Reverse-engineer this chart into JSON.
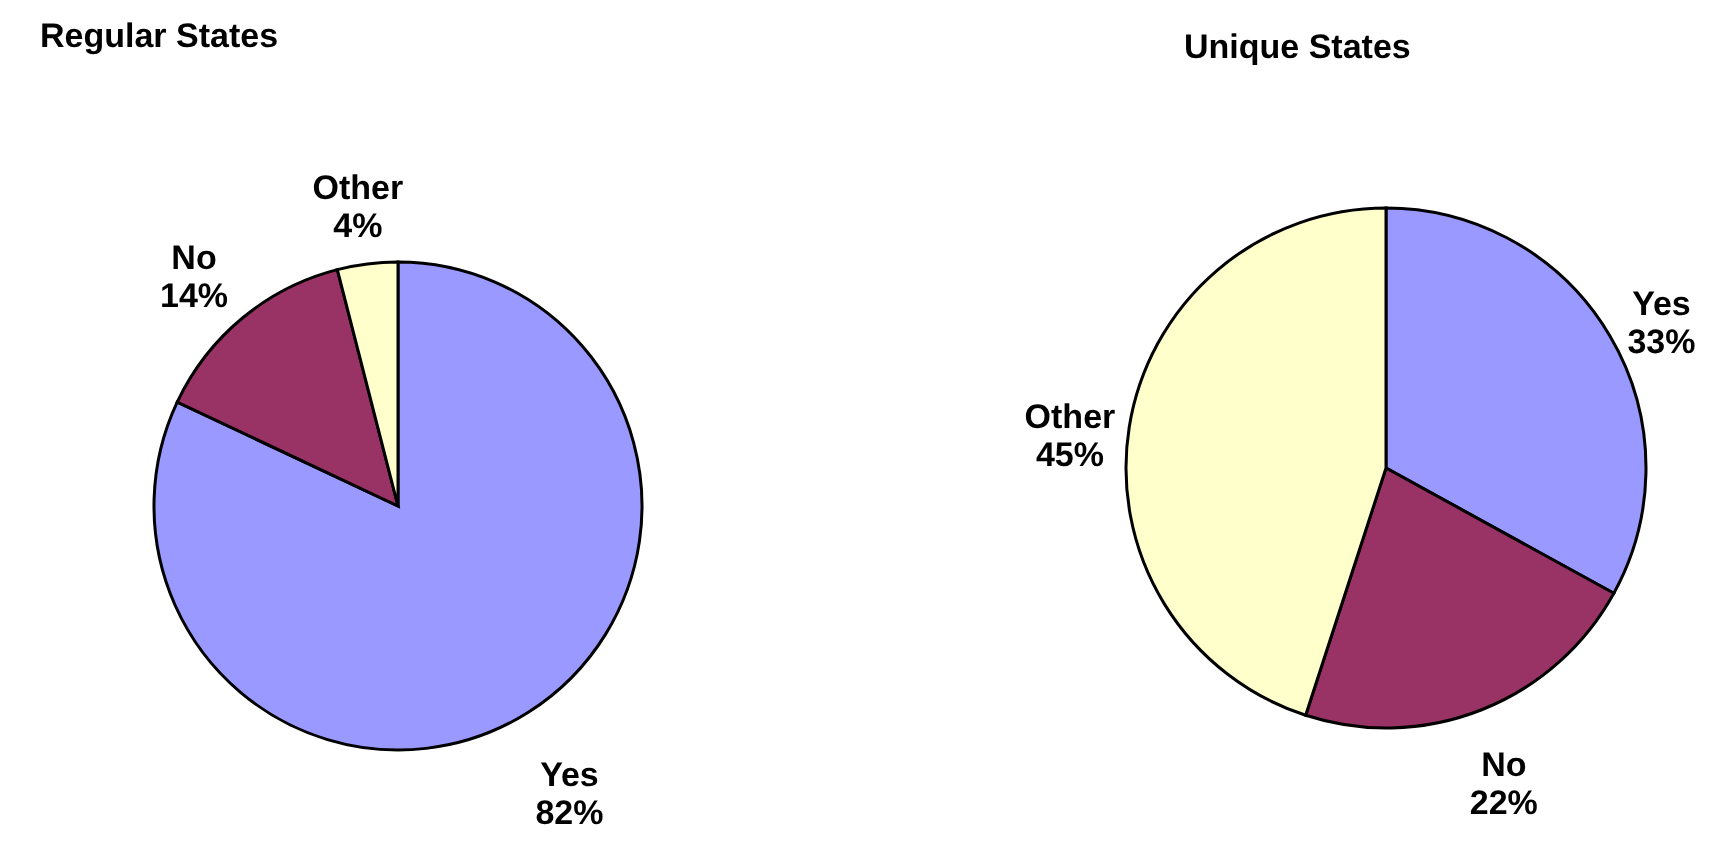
{
  "chart_data": [
    {
      "type": "pie",
      "title": "Regular States",
      "categories": [
        "Yes",
        "No",
        "Other"
      ],
      "values": [
        82,
        14,
        4
      ],
      "colors": [
        "#9999ff",
        "#993366",
        "#ffffcc"
      ],
      "value_labels": [
        "82%",
        "14%",
        "4%"
      ]
    },
    {
      "type": "pie",
      "title": "Unique States",
      "categories": [
        "Yes",
        "No",
        "Other"
      ],
      "values": [
        33,
        22,
        45
      ],
      "colors": [
        "#9999ff",
        "#993366",
        "#ffffcc"
      ],
      "value_labels": [
        "33%",
        "22%",
        "45%"
      ]
    }
  ]
}
